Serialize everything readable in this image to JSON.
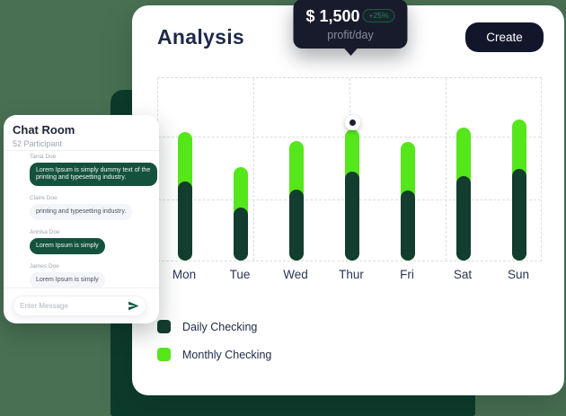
{
  "page": {
    "background_color": "#4A7053",
    "accent_rect_color": "#0D3B2C"
  },
  "analysis_card": {
    "title": "Analysis",
    "create_label": "Create"
  },
  "chart_data": {
    "type": "bar",
    "stacked": true,
    "title": "Analysis",
    "categories": [
      "Mon",
      "Tue",
      "Wed",
      "Thur",
      "Fri",
      "Sat",
      "Sun"
    ],
    "series": [
      {
        "name": "Daily Checking",
        "color": "#133D2E",
        "values": [
          900,
          605,
          810,
          1015,
          800,
          965,
          1050
        ]
      },
      {
        "name": "Monthly Checking",
        "color": "#55E61C",
        "values": [
          565,
          460,
          550,
          485,
          555,
          555,
          555
        ]
      }
    ],
    "ylim": [
      0,
      2100
    ],
    "grid": "dashed",
    "legend_position": "bottom-left",
    "highlight": {
      "category": "Thur",
      "value_label": "$ 1,500",
      "badge": "+25%",
      "caption": "profit/day"
    }
  },
  "chat": {
    "title": "Chat Room",
    "subtitle": "52 Participant",
    "messages": [
      {
        "name": "Tania Doe",
        "text": "Lorem Ipsum is simply dummy text of the printing and typesetting industry.",
        "variant": "dark"
      },
      {
        "name": "Claire Doe",
        "text": "printing and typesetting industry.",
        "variant": "light"
      },
      {
        "name": "Annisa Doe",
        "text": "Lorem Ipsum is simply",
        "variant": "dark"
      },
      {
        "name": "James Doe",
        "text": "Lorem Ipsum is simply",
        "variant": "light"
      }
    ],
    "input_placeholder": "Enter Message",
    "send_icon": "paper-plane-icon",
    "send_icon_color": "#14573F"
  }
}
